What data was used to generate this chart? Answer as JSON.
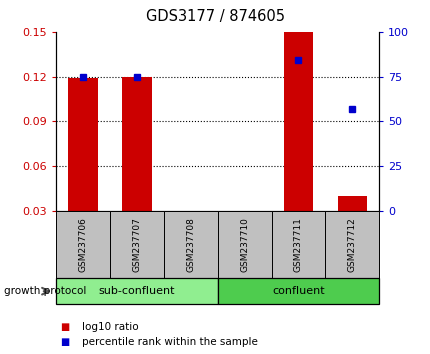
{
  "title": "GDS3177 / 874605",
  "samples": [
    "GSM237706",
    "GSM237707",
    "GSM237708",
    "GSM237710",
    "GSM237711",
    "GSM237712"
  ],
  "log10_ratio": [
    0.119,
    0.12,
    0.0,
    0.0,
    0.15,
    0.04
  ],
  "percentile_rank": [
    75,
    75,
    null,
    null,
    84,
    57
  ],
  "ylim_left": [
    0.03,
    0.15
  ],
  "ylim_right": [
    0,
    100
  ],
  "yticks_left": [
    0.03,
    0.06,
    0.09,
    0.12,
    0.15
  ],
  "yticks_right": [
    0,
    25,
    50,
    75,
    100
  ],
  "groups": [
    {
      "label": "sub-confluent",
      "indices": [
        0,
        1,
        2
      ],
      "color": "#90EE90"
    },
    {
      "label": "confluent",
      "indices": [
        3,
        4,
        5
      ],
      "color": "#4ECC4E"
    }
  ],
  "group_label": "growth protocol",
  "bar_color": "#CC0000",
  "dot_color": "#0000CC",
  "tick_label_color_left": "#CC0000",
  "tick_label_color_right": "#0000CC",
  "background_plot": "#FFFFFF",
  "background_sample": "#C0C0C0",
  "legend": [
    {
      "label": "log10 ratio",
      "color": "#CC0000"
    },
    {
      "label": "percentile rank within the sample",
      "color": "#0000CC"
    }
  ],
  "bar_width": 0.55,
  "dot_size": 5
}
